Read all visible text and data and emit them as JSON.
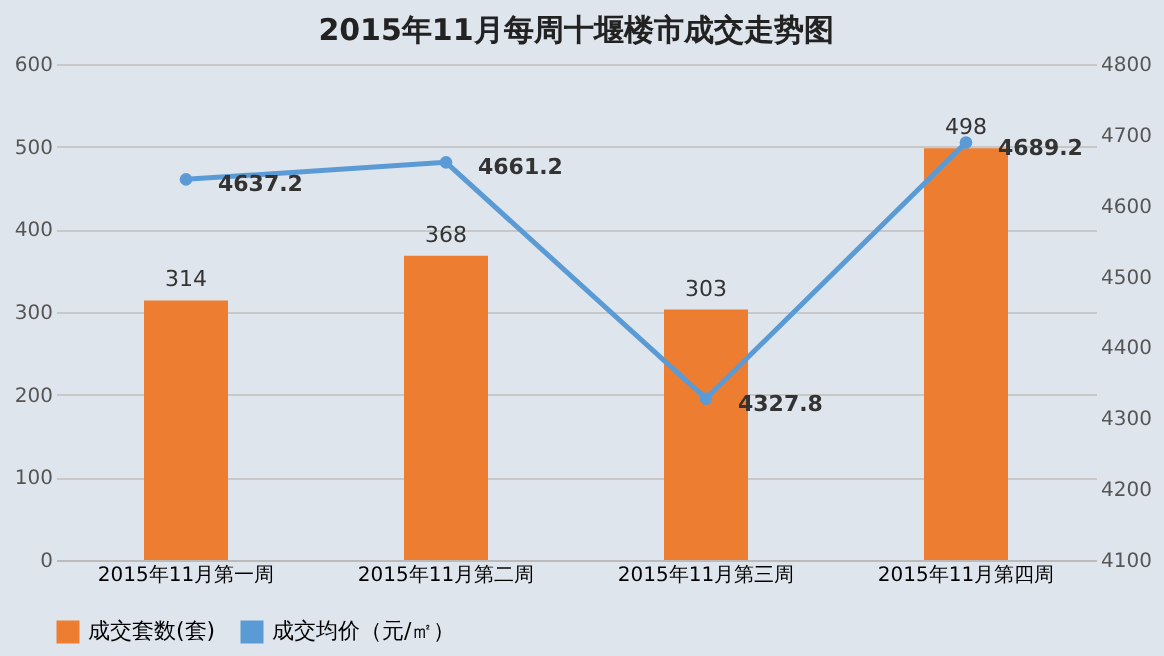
{
  "chart_data": {
    "type": "bar",
    "title": "2015年11月每周十堰楼市成交走势图",
    "categories": [
      "2015年11月第一周",
      "2015年11月第二周",
      "2015年11月第三周",
      "2015年11月第四周"
    ],
    "series": [
      {
        "name": "成交套数(套)",
        "color": "#ed7d31",
        "values": [
          314,
          368,
          303,
          498
        ]
      },
      {
        "name": "成交均价（元/㎡）",
        "type": "line",
        "axis": "y2",
        "color": "#5b9bd5",
        "values": [
          4637.2,
          4661.2,
          4327.8,
          4689.2
        ]
      }
    ],
    "ylim": [
      0,
      600
    ],
    "yticks": [
      0,
      100,
      200,
      300,
      400,
      500,
      600
    ],
    "y2lim": [
      4100,
      4800
    ],
    "y2ticks": [
      4100,
      4200,
      4300,
      4400,
      4500,
      4600,
      4700,
      4800
    ],
    "grid": "y",
    "legend": "bottom",
    "marker": "circle",
    "data_labels": true
  }
}
